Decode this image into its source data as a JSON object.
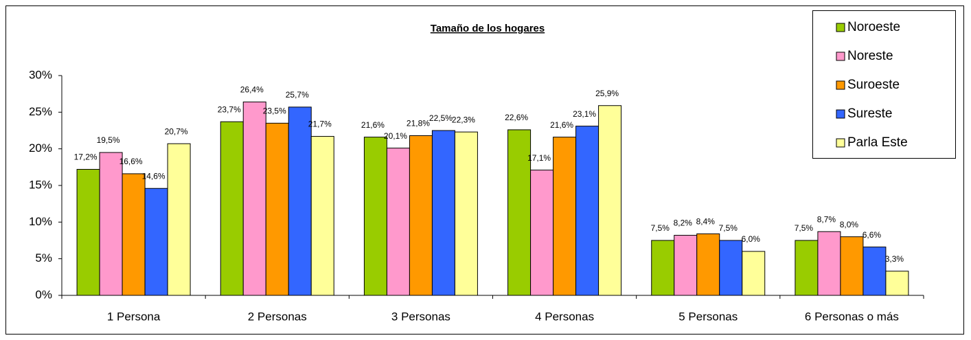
{
  "chart_data": {
    "type": "bar",
    "title": "Tamaño de los hogares",
    "categories": [
      "1 Persona",
      "2 Personas",
      "3 Personas",
      "4 Personas",
      "5 Personas",
      "6 Personas o más"
    ],
    "series": [
      {
        "name": "Noroeste",
        "color": "#99cc00",
        "values": [
          17.2,
          23.7,
          21.6,
          22.6,
          7.5,
          7.5
        ],
        "value_labels": [
          "17,2%",
          "23,7%",
          "21,6%",
          "22,6%",
          "7,5%",
          "7,5%"
        ]
      },
      {
        "name": "Noreste",
        "color": "#ff99cc",
        "values": [
          19.5,
          26.4,
          20.1,
          17.1,
          8.2,
          8.7
        ],
        "value_labels": [
          "19,5%",
          "26,4%",
          "20,1%",
          "17,1%",
          "8,2%",
          "8,7%"
        ]
      },
      {
        "name": "Suroeste",
        "color": "#ff9900",
        "values": [
          16.6,
          23.5,
          21.8,
          21.6,
          8.4,
          8.0
        ],
        "value_labels": [
          "16,6%",
          "23,5%",
          "21,8%",
          "21,6%",
          "8,4%",
          "8,0%"
        ]
      },
      {
        "name": "Sureste",
        "color": "#3366ff",
        "values": [
          14.6,
          25.7,
          22.5,
          23.1,
          7.5,
          6.6
        ],
        "value_labels": [
          "14,6%",
          "25,7%",
          "22,5%",
          "23,1%",
          "7,5%",
          "6,6%"
        ]
      },
      {
        "name": "Parla Este",
        "color": "#ffff99",
        "values": [
          20.7,
          21.7,
          22.3,
          25.9,
          6.0,
          3.3
        ],
        "value_labels": [
          "20,7%",
          "21,7%",
          "22,3%",
          "25,9%",
          "6,0%",
          "3,3%"
        ]
      }
    ],
    "ylim": [
      0,
      30
    ],
    "yticks": [
      {
        "value": 0,
        "label": "0%"
      },
      {
        "value": 5,
        "label": "5%"
      },
      {
        "value": 10,
        "label": "10%"
      },
      {
        "value": 15,
        "label": "15%"
      },
      {
        "value": 20,
        "label": "20%"
      },
      {
        "value": 25,
        "label": "25%"
      },
      {
        "value": 30,
        "label": "30%"
      }
    ],
    "legend": "top-right"
  }
}
